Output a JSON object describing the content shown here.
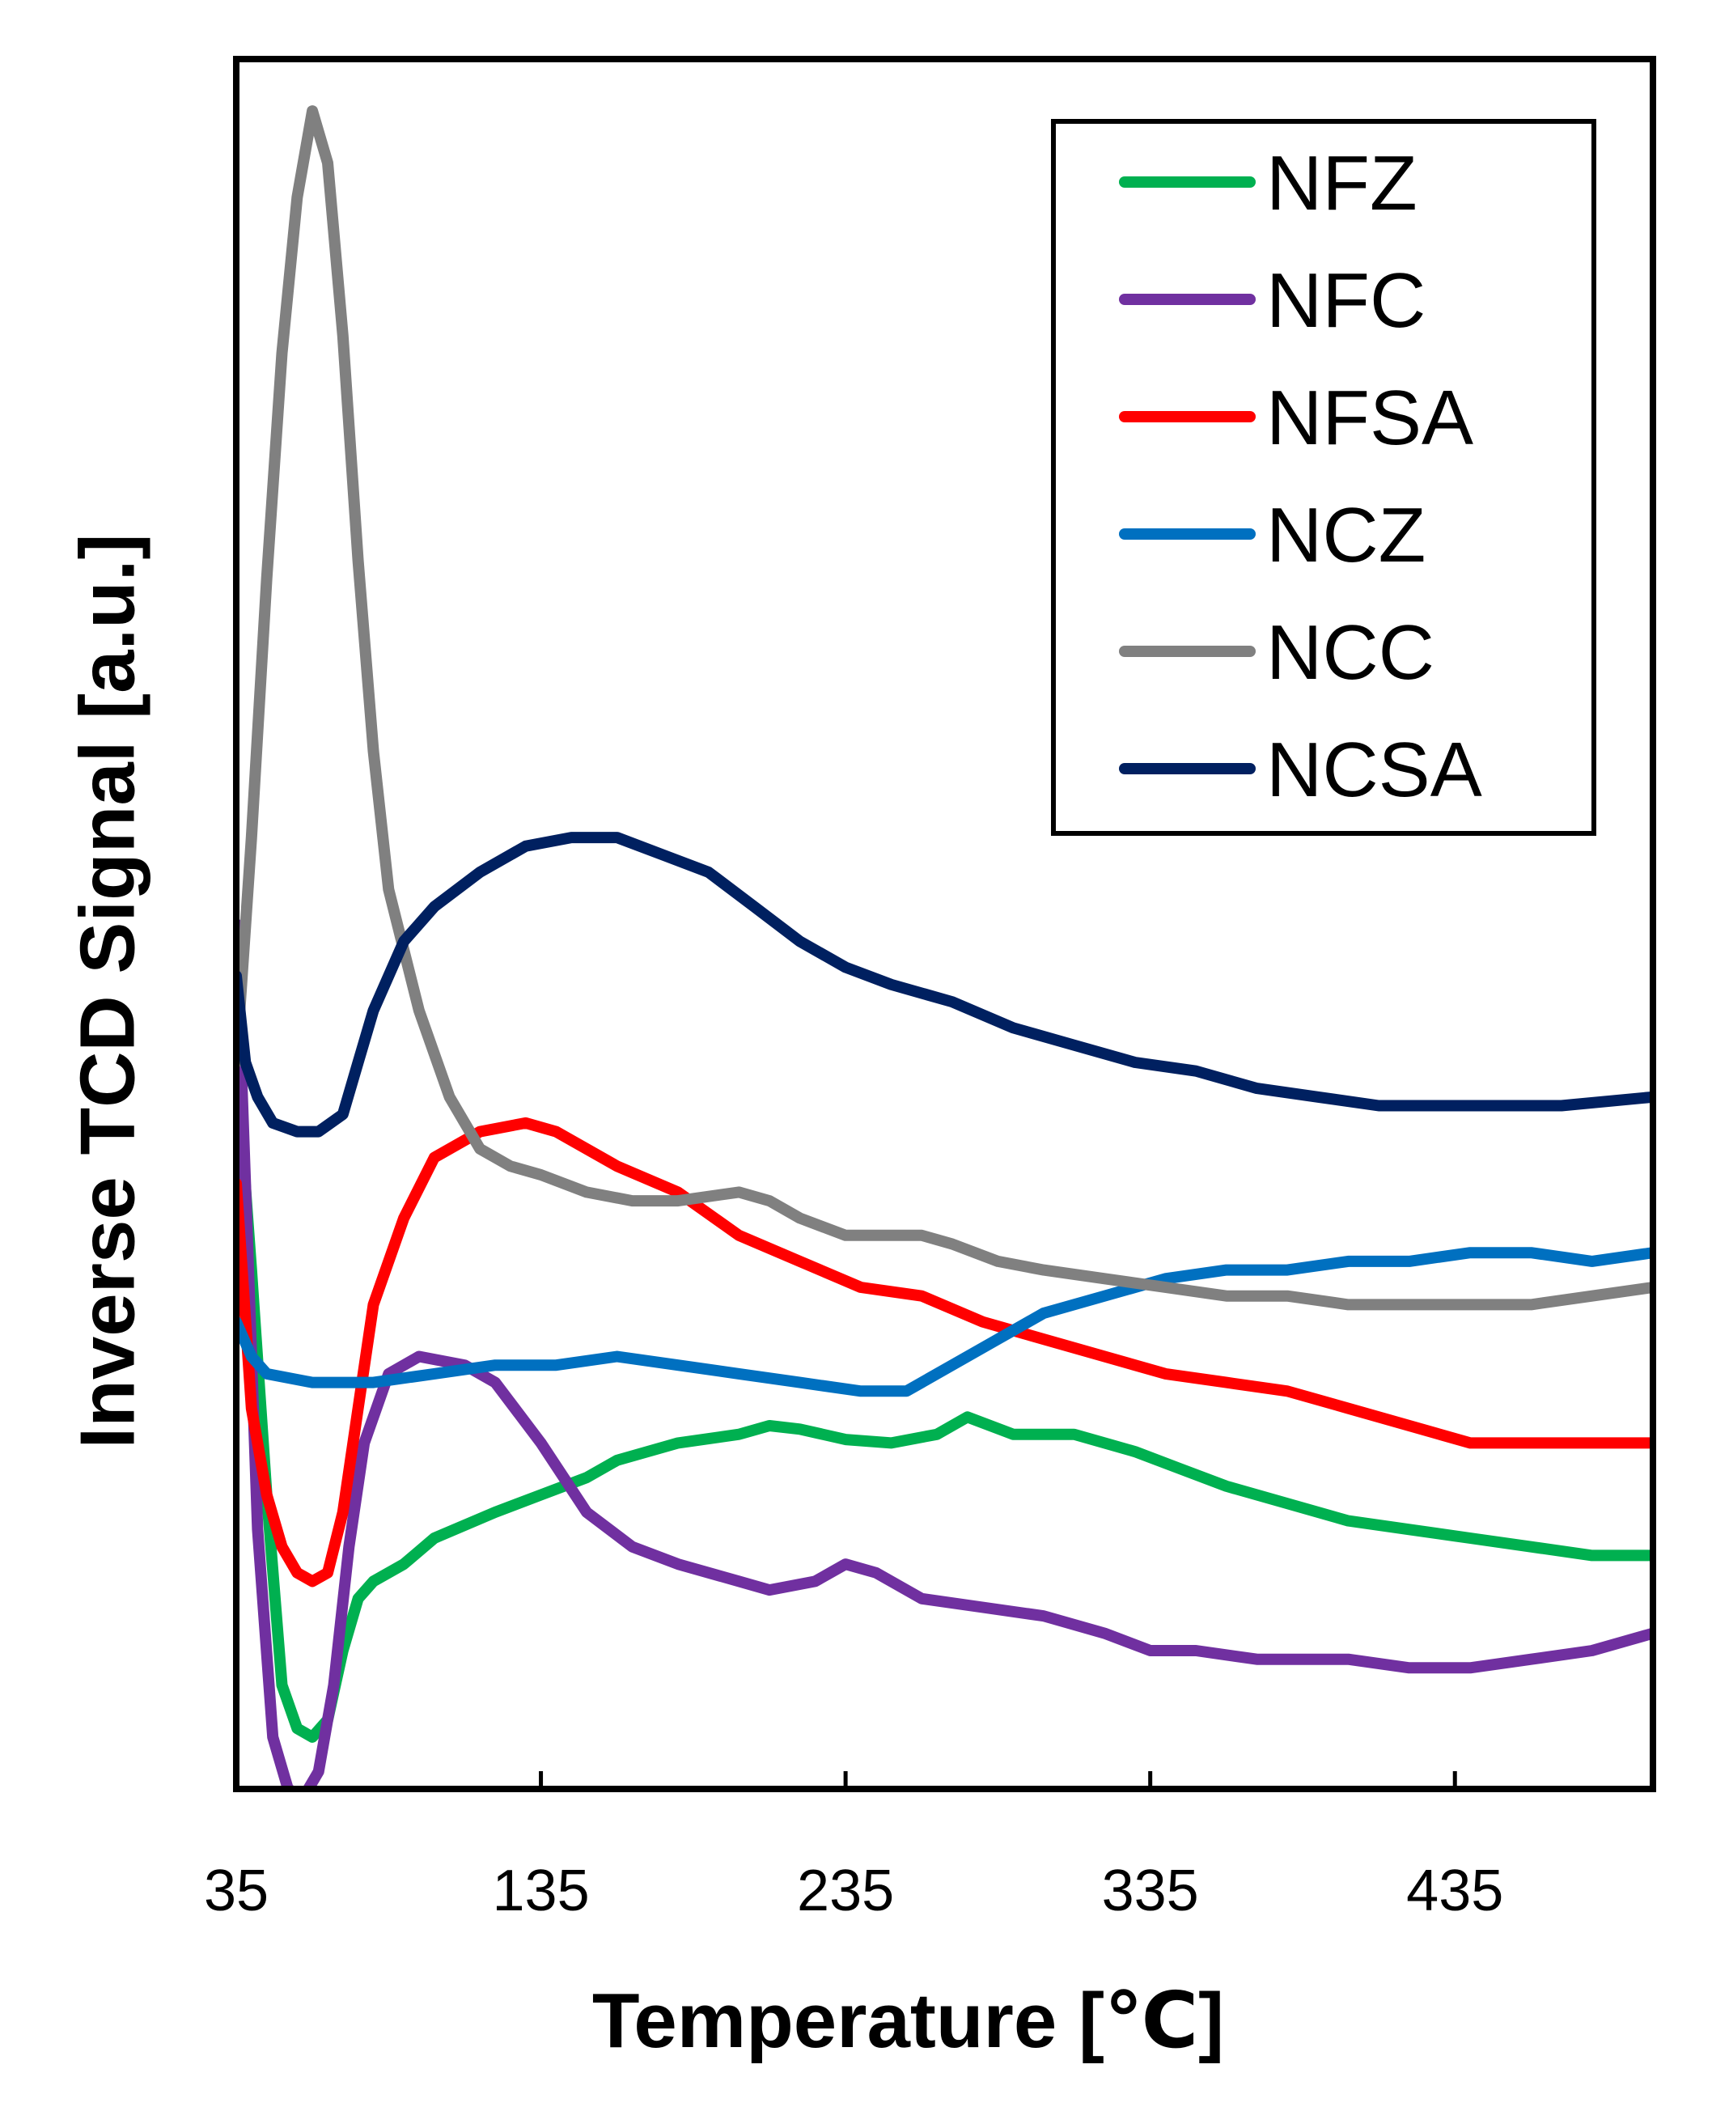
{
  "chart_data": {
    "type": "line",
    "title": "",
    "xlabel": "Temperature [℃]",
    "ylabel": "Inverse TCD Signal [a.u.]",
    "xlim": [
      35,
      500
    ],
    "ylim": [
      0,
      100
    ],
    "xticks": [
      35,
      135,
      235,
      335,
      435
    ],
    "yticks_shown": false,
    "grid": false,
    "legend_position": "top-right",
    "series": [
      {
        "name": "NFZ",
        "color": "#00b050",
        "points": [
          [
            35,
            42
          ],
          [
            40,
            30
          ],
          [
            45,
            17
          ],
          [
            50,
            6
          ],
          [
            55,
            3.5
          ],
          [
            60,
            3
          ],
          [
            65,
            4
          ],
          [
            70,
            8
          ],
          [
            75,
            11
          ],
          [
            80,
            12
          ],
          [
            90,
            13
          ],
          [
            100,
            14.5
          ],
          [
            120,
            16
          ],
          [
            135,
            17
          ],
          [
            150,
            18
          ],
          [
            160,
            19
          ],
          [
            180,
            20
          ],
          [
            200,
            20.5
          ],
          [
            210,
            21
          ],
          [
            220,
            20.8
          ],
          [
            235,
            20.2
          ],
          [
            250,
            20
          ],
          [
            265,
            20.5
          ],
          [
            275,
            21.5
          ],
          [
            290,
            20.5
          ],
          [
            310,
            20.5
          ],
          [
            330,
            19.5
          ],
          [
            345,
            18.5
          ],
          [
            360,
            17.5
          ],
          [
            380,
            16.5
          ],
          [
            400,
            15.5
          ],
          [
            420,
            15
          ],
          [
            440,
            14.5
          ],
          [
            460,
            14
          ],
          [
            480,
            13.5
          ],
          [
            500,
            13.5
          ]
        ]
      },
      {
        "name": "NFC",
        "color": "#7030a0",
        "points": [
          [
            35,
            50
          ],
          [
            38,
            35
          ],
          [
            42,
            15
          ],
          [
            47,
            3
          ],
          [
            52,
            0
          ],
          [
            57,
            -0.5
          ],
          [
            62,
            1
          ],
          [
            67,
            6
          ],
          [
            72,
            14
          ],
          [
            77,
            20
          ],
          [
            85,
            24
          ],
          [
            95,
            25
          ],
          [
            110,
            24.5
          ],
          [
            120,
            23.5
          ],
          [
            135,
            20
          ],
          [
            150,
            16
          ],
          [
            165,
            14
          ],
          [
            180,
            13
          ],
          [
            200,
            12
          ],
          [
            210,
            11.5
          ],
          [
            225,
            12
          ],
          [
            235,
            13
          ],
          [
            245,
            12.5
          ],
          [
            260,
            11
          ],
          [
            280,
            10.5
          ],
          [
            300,
            10
          ],
          [
            320,
            9
          ],
          [
            335,
            8
          ],
          [
            350,
            8
          ],
          [
            370,
            7.5
          ],
          [
            400,
            7.5
          ],
          [
            420,
            7
          ],
          [
            440,
            7
          ],
          [
            460,
            7.5
          ],
          [
            480,
            8
          ],
          [
            500,
            9
          ]
        ]
      },
      {
        "name": "NFSA",
        "color": "#ff0000",
        "points": [
          [
            35,
            35
          ],
          [
            40,
            22
          ],
          [
            45,
            17
          ],
          [
            50,
            14
          ],
          [
            55,
            12.5
          ],
          [
            60,
            12
          ],
          [
            65,
            12.5
          ],
          [
            70,
            16
          ],
          [
            75,
            22
          ],
          [
            80,
            28
          ],
          [
            90,
            33
          ],
          [
            100,
            36.5
          ],
          [
            115,
            38
          ],
          [
            130,
            38.5
          ],
          [
            140,
            38
          ],
          [
            160,
            36
          ],
          [
            180,
            34.5
          ],
          [
            200,
            32
          ],
          [
            220,
            30.5
          ],
          [
            240,
            29
          ],
          [
            260,
            28.5
          ],
          [
            280,
            27
          ],
          [
            300,
            26
          ],
          [
            320,
            25
          ],
          [
            340,
            24
          ],
          [
            360,
            23.5
          ],
          [
            380,
            23
          ],
          [
            400,
            22
          ],
          [
            420,
            21
          ],
          [
            440,
            20
          ],
          [
            460,
            20
          ],
          [
            480,
            20
          ],
          [
            500,
            20
          ]
        ]
      },
      {
        "name": "NCZ",
        "color": "#0070c0",
        "points": [
          [
            35,
            27
          ],
          [
            40,
            25
          ],
          [
            45,
            24
          ],
          [
            60,
            23.5
          ],
          [
            80,
            23.5
          ],
          [
            100,
            24
          ],
          [
            120,
            24.5
          ],
          [
            140,
            24.5
          ],
          [
            160,
            25
          ],
          [
            180,
            24.5
          ],
          [
            200,
            24
          ],
          [
            220,
            23.5
          ],
          [
            240,
            23
          ],
          [
            255,
            23
          ],
          [
            270,
            24.5
          ],
          [
            285,
            26
          ],
          [
            300,
            27.5
          ],
          [
            320,
            28.5
          ],
          [
            340,
            29.5
          ],
          [
            360,
            30
          ],
          [
            380,
            30
          ],
          [
            400,
            30.5
          ],
          [
            420,
            30.5
          ],
          [
            440,
            31
          ],
          [
            460,
            31
          ],
          [
            480,
            30.5
          ],
          [
            500,
            31
          ]
        ]
      },
      {
        "name": "NCC",
        "color": "#808080",
        "points": [
          [
            35,
            42
          ],
          [
            40,
            55
          ],
          [
            45,
            70
          ],
          [
            50,
            83
          ],
          [
            55,
            92
          ],
          [
            60,
            97
          ],
          [
            65,
            94
          ],
          [
            70,
            84
          ],
          [
            75,
            71
          ],
          [
            80,
            60
          ],
          [
            85,
            52
          ],
          [
            95,
            45
          ],
          [
            105,
            40
          ],
          [
            115,
            37
          ],
          [
            125,
            36
          ],
          [
            135,
            35.5
          ],
          [
            150,
            34.5
          ],
          [
            165,
            34
          ],
          [
            180,
            34
          ],
          [
            200,
            34.5
          ],
          [
            210,
            34
          ],
          [
            220,
            33
          ],
          [
            235,
            32
          ],
          [
            245,
            32
          ],
          [
            260,
            32
          ],
          [
            270,
            31.5
          ],
          [
            285,
            30.5
          ],
          [
            300,
            30
          ],
          [
            320,
            29.5
          ],
          [
            340,
            29
          ],
          [
            360,
            28.5
          ],
          [
            380,
            28.5
          ],
          [
            400,
            28
          ],
          [
            420,
            28
          ],
          [
            440,
            28
          ],
          [
            460,
            28
          ],
          [
            480,
            28.5
          ],
          [
            500,
            29
          ]
        ]
      },
      {
        "name": "NCSA",
        "color": "#002060",
        "points": [
          [
            35,
            47
          ],
          [
            38,
            42
          ],
          [
            42,
            40
          ],
          [
            47,
            38.5
          ],
          [
            55,
            38
          ],
          [
            62,
            38
          ],
          [
            70,
            39
          ],
          [
            75,
            42
          ],
          [
            80,
            45
          ],
          [
            90,
            49
          ],
          [
            100,
            51
          ],
          [
            115,
            53
          ],
          [
            130,
            54.5
          ],
          [
            145,
            55
          ],
          [
            160,
            55
          ],
          [
            175,
            54
          ],
          [
            190,
            53
          ],
          [
            205,
            51
          ],
          [
            220,
            49
          ],
          [
            235,
            47.5
          ],
          [
            250,
            46.5
          ],
          [
            270,
            45.5
          ],
          [
            290,
            44
          ],
          [
            310,
            43
          ],
          [
            330,
            42
          ],
          [
            350,
            41.5
          ],
          [
            370,
            40.5
          ],
          [
            390,
            40
          ],
          [
            410,
            39.5
          ],
          [
            430,
            39.5
          ],
          [
            450,
            39.5
          ],
          [
            470,
            39.5
          ],
          [
            500,
            40
          ]
        ]
      }
    ]
  }
}
